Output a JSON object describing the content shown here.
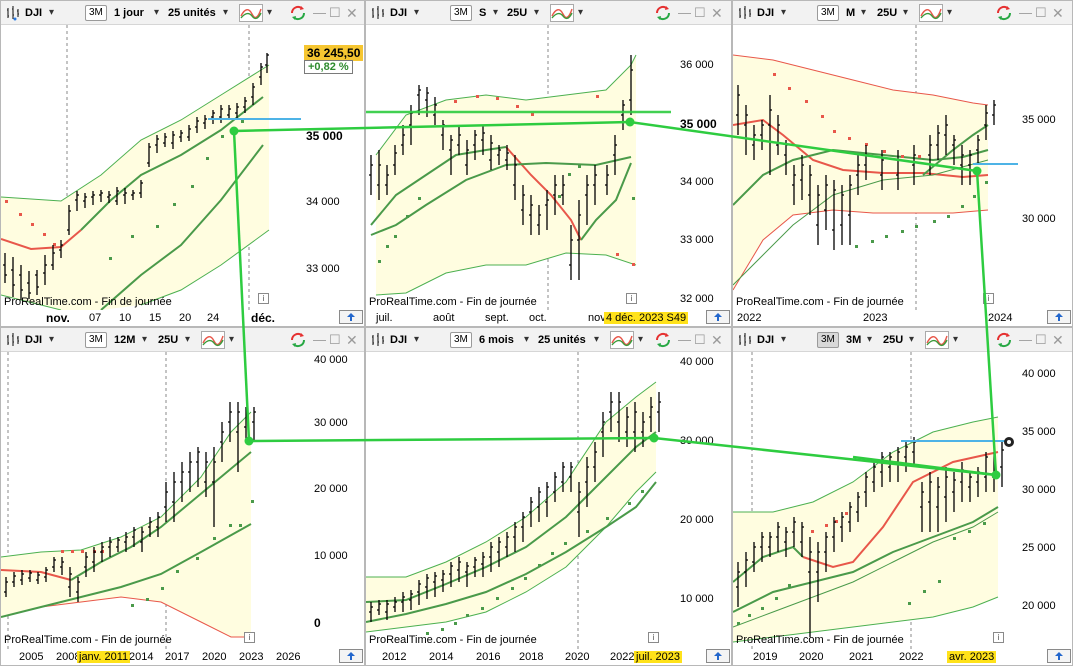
{
  "colors": {
    "band_fill": "#fffde0",
    "band_line": "#4cb050",
    "ma_red": "#e8574a",
    "ma_green": "#4a9a4a",
    "sar_red": "#e8574a",
    "sar_green": "#4a9a4a",
    "bars": "#000000",
    "overlay_line": "#2ecc40",
    "hline": "#4db3e6",
    "grid": "#888888",
    "price_box": "#f6c631"
  },
  "icons": {
    "bars_icon": "ohlc-bars-icon",
    "indicator_icon": "indicator-icon",
    "refresh_icon": "refresh-icon"
  },
  "panels": [
    {
      "id": "p1",
      "toolbar": {
        "symbol": "DJI",
        "btn3m": "3M",
        "period": "1 jour",
        "units": "25 unités"
      },
      "watermark": "ProRealTime.com - Fin de journée",
      "y_labels": [
        "35 000",
        "34 000",
        "33 000"
      ],
      "x_labels": [
        "nov.",
        "07",
        "10",
        "15",
        "20",
        "24",
        "déc."
      ],
      "price": "36 245,50",
      "change": "+0,82 %"
    },
    {
      "id": "p2",
      "toolbar": {
        "symbol": "DJI",
        "btn3m": "3M",
        "period": "S",
        "units": "25U"
      },
      "watermark": "ProRealTime.com - Fin de journée",
      "y_labels": [
        "36 000",
        "35 000",
        "34 000",
        "33 000",
        "32 000"
      ],
      "x_labels": [
        "juil.",
        "août",
        "sept.",
        "oct.",
        "nov"
      ],
      "cursor_label": "4 déc. 2023 S49"
    },
    {
      "id": "p3",
      "toolbar": {
        "symbol": "DJI",
        "btn3m": "3M",
        "period": "M",
        "units": "25U"
      },
      "watermark": "ProRealTime.com - Fin de journée",
      "y_labels": [
        "35 000",
        "30 000"
      ],
      "x_labels": [
        "2022",
        "2023",
        "2024"
      ]
    },
    {
      "id": "p4",
      "toolbar": {
        "symbol": "DJI",
        "btn3m": "3M",
        "period": "12M",
        "units": "25U"
      },
      "watermark": "ProRealTime.com - Fin de journée",
      "y_labels": [
        "40 000",
        "30 000",
        "20 000",
        "10 000",
        "0"
      ],
      "x_labels": [
        "2005",
        "2008",
        "2014",
        "2017",
        "2020",
        "2023",
        "2026"
      ],
      "cursor_label": "janv. 2011"
    },
    {
      "id": "p5",
      "toolbar": {
        "symbol": "DJI",
        "btn3m": "3M",
        "period": "6 mois",
        "units": "25 unités"
      },
      "watermark": "ProRealTime.com - Fin de journée",
      "y_labels": [
        "40 000",
        "30 000",
        "20 000",
        "10 000"
      ],
      "x_labels": [
        "2012",
        "2014",
        "2016",
        "2018",
        "2020",
        "2022"
      ],
      "cursor_label": "juil. 2023"
    },
    {
      "id": "p6",
      "toolbar": {
        "symbol": "DJI",
        "btn3m": "3M",
        "period": "3M",
        "units": "25U"
      },
      "watermark": "ProRealTime.com - Fin de journée",
      "y_labels": [
        "40 000",
        "35 000",
        "30 000",
        "25 000",
        "20 000"
      ],
      "x_labels": [
        "2019",
        "2020",
        "2021",
        "2022"
      ],
      "cursor_label": "avr. 2023"
    }
  ]
}
